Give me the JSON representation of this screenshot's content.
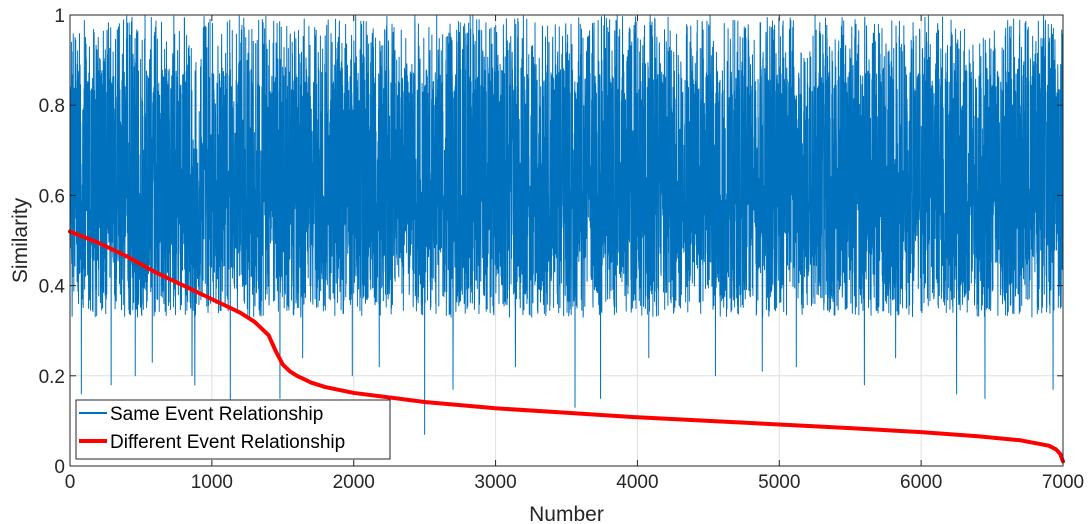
{
  "chart_data": {
    "type": "line",
    "xlabel": "Number",
    "ylabel": "Similarity",
    "xlim": [
      0,
      7000
    ],
    "ylim": [
      0,
      1
    ],
    "xticks": [
      0,
      1000,
      2000,
      3000,
      4000,
      5000,
      6000,
      7000
    ],
    "xtick_labels": [
      "0",
      "1000",
      "2000",
      "3000",
      "4000",
      "5000",
      "6000",
      "7000"
    ],
    "yticks": [
      0,
      0.2,
      0.4,
      0.6,
      0.8,
      1
    ],
    "ytick_labels": [
      "0",
      "0.2",
      "0.4",
      "0.6",
      "0.8",
      "1"
    ],
    "grid": true,
    "legend_position": "bottom-left",
    "series": [
      {
        "name": "Same Event Relationship",
        "color": "#0072BD",
        "style": "noisy-band",
        "n_points": 7000,
        "band_typical_low": 0.33,
        "band_typical_high": 1.0,
        "occasional_min": 0.07,
        "notable_dips": [
          {
            "x": 80,
            "y": 0.16
          },
          {
            "x": 290,
            "y": 0.18
          },
          {
            "x": 460,
            "y": 0.2
          },
          {
            "x": 580,
            "y": 0.23
          },
          {
            "x": 860,
            "y": 0.2
          },
          {
            "x": 880,
            "y": 0.18
          },
          {
            "x": 1130,
            "y": 0.14
          },
          {
            "x": 1480,
            "y": 0.15
          },
          {
            "x": 1640,
            "y": 0.24
          },
          {
            "x": 1990,
            "y": 0.2
          },
          {
            "x": 2180,
            "y": 0.22
          },
          {
            "x": 2500,
            "y": 0.07
          },
          {
            "x": 2700,
            "y": 0.17
          },
          {
            "x": 3140,
            "y": 0.22
          },
          {
            "x": 3560,
            "y": 0.13
          },
          {
            "x": 3740,
            "y": 0.15
          },
          {
            "x": 4080,
            "y": 0.24
          },
          {
            "x": 4550,
            "y": 0.2
          },
          {
            "x": 4880,
            "y": 0.21
          },
          {
            "x": 5120,
            "y": 0.22
          },
          {
            "x": 5600,
            "y": 0.18
          },
          {
            "x": 5820,
            "y": 0.24
          },
          {
            "x": 6250,
            "y": 0.16
          },
          {
            "x": 6450,
            "y": 0.15
          },
          {
            "x": 6930,
            "y": 0.17
          }
        ]
      },
      {
        "name": "Different Event Relationship",
        "color": "#FF0000",
        "style": "thick-line",
        "x": [
          0,
          200,
          400,
          600,
          800,
          1000,
          1200,
          1300,
          1400,
          1450,
          1500,
          1550,
          1600,
          1700,
          1800,
          2000,
          2500,
          3000,
          3500,
          4000,
          4500,
          5000,
          5500,
          6000,
          6400,
          6700,
          6900,
          6950,
          6980,
          7000
        ],
        "y": [
          0.52,
          0.495,
          0.465,
          0.43,
          0.4,
          0.37,
          0.34,
          0.32,
          0.29,
          0.255,
          0.225,
          0.21,
          0.2,
          0.185,
          0.175,
          0.162,
          0.142,
          0.128,
          0.118,
          0.108,
          0.1,
          0.092,
          0.084,
          0.075,
          0.066,
          0.057,
          0.045,
          0.037,
          0.027,
          0.01
        ]
      }
    ]
  }
}
